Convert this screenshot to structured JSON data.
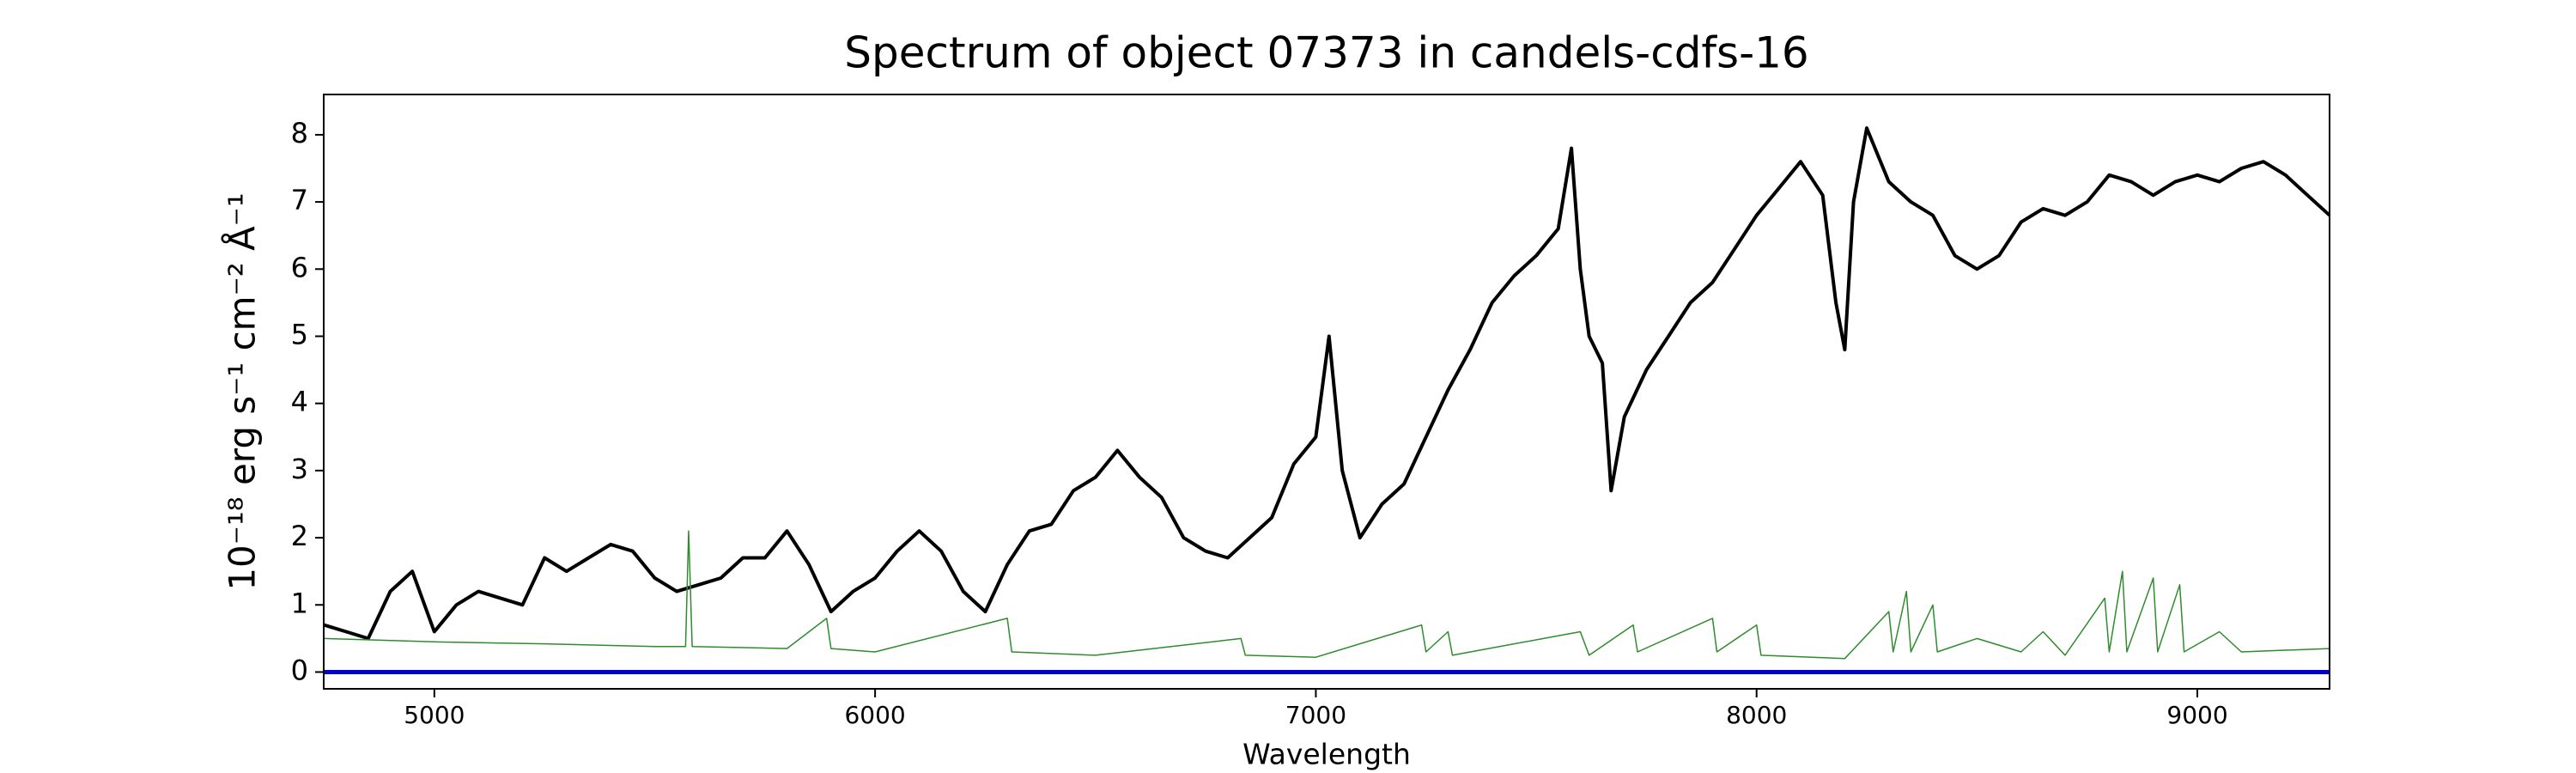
{
  "chart_data": {
    "type": "line",
    "title": "Spectrum of object 07373 in candels-cdfs-16",
    "xlabel": "Wavelength",
    "ylabel": "10⁻¹⁸ erg s⁻¹ cm⁻² Å⁻¹",
    "xlim": [
      4749,
      9300
    ],
    "ylim": [
      -0.25,
      8.6
    ],
    "xticks": [
      5000,
      6000,
      7000,
      8000,
      9000
    ],
    "yticks": [
      0,
      1,
      2,
      3,
      4,
      5,
      6,
      7,
      8
    ],
    "hline": {
      "value": 0,
      "color": "#0000cc"
    },
    "series": [
      {
        "color": "#000000",
        "x": [
          4750,
          4800,
          4850,
          4900,
          4950,
          5000,
          5050,
          5100,
          5150,
          5200,
          5250,
          5300,
          5350,
          5400,
          5450,
          5500,
          5550,
          5600,
          5650,
          5700,
          5750,
          5800,
          5850,
          5900,
          5950,
          6000,
          6050,
          6100,
          6150,
          6200,
          6250,
          6300,
          6350,
          6400,
          6450,
          6500,
          6550,
          6600,
          6650,
          6700,
          6750,
          6800,
          6850,
          6900,
          6950,
          7000,
          7030,
          7060,
          7100,
          7150,
          7200,
          7250,
          7300,
          7350,
          7400,
          7450,
          7500,
          7550,
          7580,
          7600,
          7620,
          7650,
          7670,
          7700,
          7750,
          7800,
          7850,
          7900,
          7950,
          8000,
          8050,
          8100,
          8150,
          8180,
          8200,
          8220,
          8250,
          8300,
          8350,
          8400,
          8450,
          8500,
          8550,
          8600,
          8650,
          8700,
          8750,
          8800,
          8850,
          8900,
          8950,
          9000,
          9050,
          9100,
          9150,
          9200,
          9250,
          9300
        ],
        "values": [
          0.7,
          0.6,
          0.5,
          1.2,
          1.5,
          0.6,
          1.0,
          1.2,
          1.1,
          1.0,
          1.7,
          1.5,
          1.7,
          1.9,
          1.8,
          1.4,
          1.2,
          1.3,
          1.4,
          1.7,
          1.7,
          2.1,
          1.6,
          0.9,
          1.2,
          1.4,
          1.8,
          2.1,
          1.8,
          1.2,
          0.9,
          1.6,
          2.1,
          2.2,
          2.7,
          2.9,
          3.3,
          2.9,
          2.6,
          2.0,
          1.8,
          1.7,
          2.0,
          2.3,
          3.1,
          3.5,
          5.0,
          3.0,
          2.0,
          2.5,
          2.8,
          3.5,
          4.2,
          4.8,
          5.5,
          5.9,
          6.2,
          6.6,
          7.8,
          6.0,
          5.0,
          4.6,
          2.7,
          3.8,
          4.5,
          5.0,
          5.5,
          5.8,
          6.3,
          6.8,
          7.2,
          7.6,
          7.1,
          5.5,
          4.8,
          7.0,
          8.1,
          7.3,
          7.0,
          6.8,
          6.2,
          6.0,
          6.2,
          6.7,
          6.9,
          6.8,
          7.0,
          7.4,
          7.3,
          7.1,
          7.3,
          7.4,
          7.3,
          7.5,
          7.6,
          7.4,
          7.1,
          6.8
        ]
      },
      {
        "color": "#2e8b2e",
        "x": [
          4750,
          5000,
          5250,
          5500,
          5570,
          5577,
          5585,
          5800,
          5890,
          5900,
          6000,
          6300,
          6310,
          6500,
          6830,
          6840,
          7000,
          7240,
          7250,
          7300,
          7310,
          7600,
          7620,
          7720,
          7730,
          7900,
          7910,
          8000,
          8010,
          8200,
          8300,
          8310,
          8340,
          8350,
          8400,
          8410,
          8500,
          8600,
          8650,
          8700,
          8790,
          8800,
          8830,
          8840,
          8900,
          8910,
          8960,
          8970,
          9050,
          9100,
          9300
        ],
        "values": [
          0.5,
          0.45,
          0.42,
          0.38,
          0.38,
          2.1,
          0.38,
          0.35,
          0.8,
          0.35,
          0.3,
          0.8,
          0.3,
          0.25,
          0.5,
          0.25,
          0.22,
          0.7,
          0.3,
          0.6,
          0.25,
          0.6,
          0.25,
          0.7,
          0.3,
          0.8,
          0.3,
          0.7,
          0.25,
          0.2,
          0.9,
          0.3,
          1.2,
          0.3,
          1.0,
          0.3,
          0.5,
          0.3,
          0.6,
          0.25,
          1.1,
          0.3,
          1.5,
          0.3,
          1.4,
          0.3,
          1.3,
          0.3,
          0.6,
          0.3,
          0.35
        ]
      }
    ]
  }
}
